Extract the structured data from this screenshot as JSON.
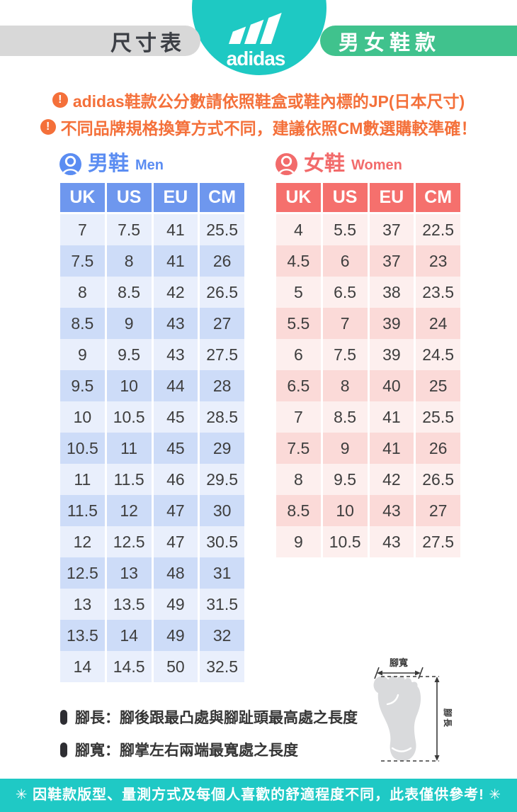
{
  "header": {
    "left_label": "尺寸表",
    "brand": "adidas",
    "right_label": "男女鞋款"
  },
  "notices": [
    "adidas鞋款公分數請依照鞋盒或鞋內標的JP(日本尺寸)",
    "不同品牌規格換算方式不同，建議依照CM數選購較準確！"
  ],
  "men": {
    "title_zh": "男鞋",
    "title_en": "Men",
    "columns": [
      "UK",
      "US",
      "EU",
      "CM"
    ],
    "rows": [
      [
        "7",
        "7.5",
        "41",
        "25.5"
      ],
      [
        "7.5",
        "8",
        "41",
        "26"
      ],
      [
        "8",
        "8.5",
        "42",
        "26.5"
      ],
      [
        "8.5",
        "9",
        "43",
        "27"
      ],
      [
        "9",
        "9.5",
        "43",
        "27.5"
      ],
      [
        "9.5",
        "10",
        "44",
        "28"
      ],
      [
        "10",
        "10.5",
        "45",
        "28.5"
      ],
      [
        "10.5",
        "11",
        "45",
        "29"
      ],
      [
        "11",
        "11.5",
        "46",
        "29.5"
      ],
      [
        "11.5",
        "12",
        "47",
        "30"
      ],
      [
        "12",
        "12.5",
        "47",
        "30.5"
      ],
      [
        "12.5",
        "13",
        "48",
        "31"
      ],
      [
        "13",
        "13.5",
        "49",
        "31.5"
      ],
      [
        "13.5",
        "14",
        "49",
        "32"
      ],
      [
        "14",
        "14.5",
        "50",
        "32.5"
      ]
    ]
  },
  "women": {
    "title_zh": "女鞋",
    "title_en": "Women",
    "columns": [
      "UK",
      "US",
      "EU",
      "CM"
    ],
    "rows": [
      [
        "4",
        "5.5",
        "37",
        "22.5"
      ],
      [
        "4.5",
        "6",
        "37",
        "23"
      ],
      [
        "5",
        "6.5",
        "38",
        "23.5"
      ],
      [
        "5.5",
        "7",
        "39",
        "24"
      ],
      [
        "6",
        "7.5",
        "39",
        "24.5"
      ],
      [
        "6.5",
        "8",
        "40",
        "25"
      ],
      [
        "7",
        "8.5",
        "41",
        "25.5"
      ],
      [
        "7.5",
        "9",
        "41",
        "26"
      ],
      [
        "8",
        "9.5",
        "42",
        "26.5"
      ],
      [
        "8.5",
        "10",
        "43",
        "27"
      ],
      [
        "9",
        "10.5",
        "43",
        "27.5"
      ]
    ]
  },
  "foot_notes": [
    "腳長：腳後跟最凸處與腳趾頭最高處之長度",
    "腳寬：腳掌左右兩端最寬處之長度"
  ],
  "diagram": {
    "width_label": "腳寬",
    "length_label": "腳長"
  },
  "footer": {
    "text": "✳ 因鞋款版型、量測方式及每個人喜歡的舒適程度不同，此表僅供參考! ✳"
  },
  "colors": {
    "teal": "#1EC9C3",
    "green": "#40C28D",
    "gray_band": "#D8D8D8",
    "orange": "#F4703A",
    "men_blue": "#6E97EE",
    "men_title": "#5B8DF2",
    "men_row_light": "#E9EFFC",
    "men_row_dark": "#CDDCF8",
    "women_red": "#F5706D",
    "women_title": "#F26B6B",
    "women_row_light": "#FDEFEE",
    "women_row_dark": "#FBDAD8"
  }
}
